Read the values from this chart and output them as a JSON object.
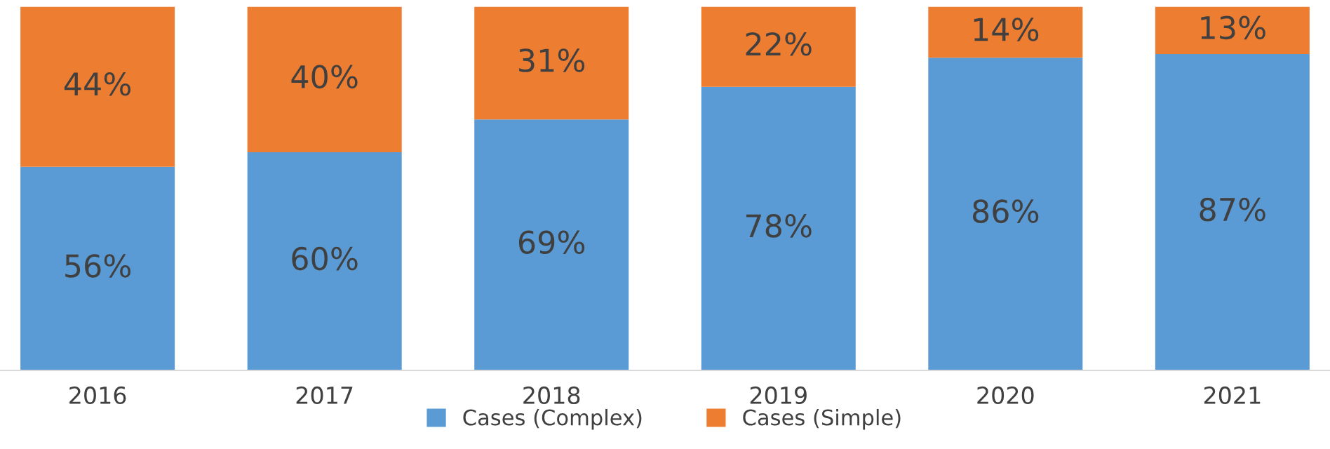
{
  "chart_data": {
    "type": "bar",
    "stacked": true,
    "categories": [
      "2016",
      "2017",
      "2018",
      "2019",
      "2020",
      "2021"
    ],
    "series": [
      {
        "name": "Cases (Complex)",
        "color": "#5b9bd5",
        "values": [
          56,
          60,
          69,
          78,
          86,
          87
        ],
        "value_labels": [
          "56%",
          "60%",
          "69%",
          "78%",
          "86%",
          "87%"
        ]
      },
      {
        "name": "Cases (Simple)",
        "color": "#ed7d31",
        "values": [
          44,
          40,
          31,
          22,
          14,
          13
        ],
        "value_labels": [
          "44%",
          "40%",
          "31%",
          "22%",
          "14%",
          "13%"
        ]
      }
    ],
    "legend": "bottom",
    "grid": false,
    "tick_labels": "x"
  }
}
